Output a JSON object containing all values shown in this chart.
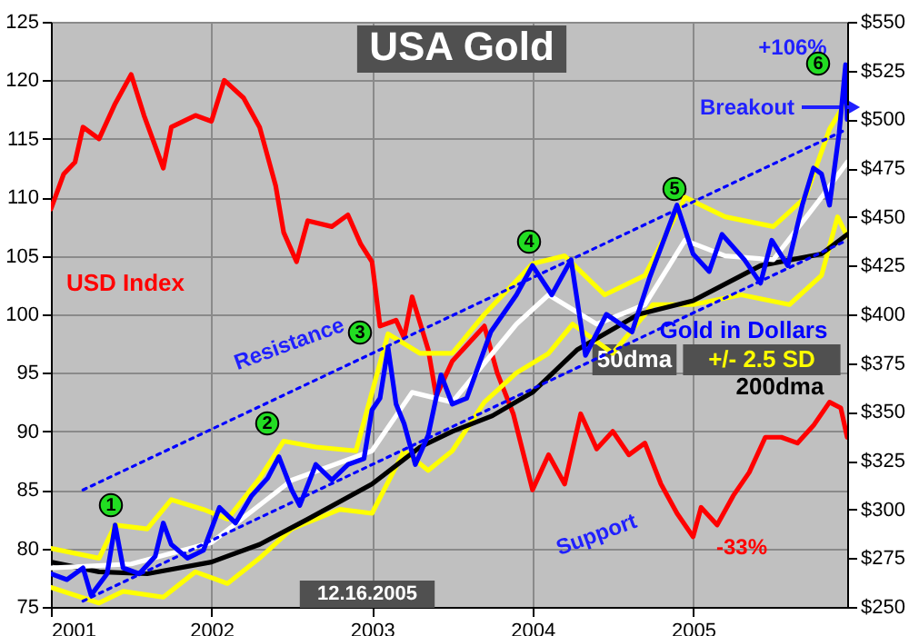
{
  "chart_data": {
    "type": "line",
    "title": "USA Gold",
    "xlim": [
      2001,
      2005.96
    ],
    "xticks": [
      2001,
      2002,
      2003,
      2004,
      2005
    ],
    "ylim": [
      75,
      125
    ],
    "yticks": [
      75,
      80,
      85,
      90,
      95,
      100,
      105,
      110,
      115,
      120,
      125
    ],
    "y2lim": [
      250,
      550
    ],
    "y2ticks": [
      {
        "value": 250,
        "label": "$250"
      },
      {
        "value": 275,
        "label": "$275"
      },
      {
        "value": 300,
        "label": "$300"
      },
      {
        "value": 325,
        "label": "$325"
      },
      {
        "value": 350,
        "label": "$350"
      },
      {
        "value": 375,
        "label": "$375"
      },
      {
        "value": 400,
        "label": "$400"
      },
      {
        "value": 425,
        "label": "$425"
      },
      {
        "value": 450,
        "label": "$450"
      },
      {
        "value": 475,
        "label": "$475"
      },
      {
        "value": 500,
        "label": "$500"
      },
      {
        "value": 525,
        "label": "$525"
      },
      {
        "value": 550,
        "label": "$550"
      }
    ],
    "grid": true,
    "series": [
      {
        "name": "USD Index",
        "color": "#ff0000",
        "x": [
          2001.0,
          2001.08,
          2001.15,
          2001.2,
          2001.3,
          2001.4,
          2001.5,
          2001.58,
          2001.7,
          2001.75,
          2001.9,
          2002.0,
          2002.08,
          2002.2,
          2002.3,
          2002.4,
          2002.45,
          2002.53,
          2002.6,
          2002.75,
          2002.85,
          2002.93,
          2003.0,
          2003.05,
          2003.15,
          2003.2,
          2003.25,
          2003.35,
          2003.4,
          2003.5,
          2003.7,
          2003.78,
          2003.88,
          2004.0,
          2004.1,
          2004.2,
          2004.3,
          2004.4,
          2004.5,
          2004.6,
          2004.7,
          2004.8,
          2004.9,
          2005.0,
          2005.05,
          2005.15,
          2005.25,
          2005.35,
          2005.45,
          2005.55,
          2005.65,
          2005.75,
          2005.85,
          2005.92,
          2005.96
        ],
        "values": [
          109,
          112,
          113,
          116,
          115,
          118,
          120.5,
          117,
          112.5,
          116,
          117,
          116.5,
          120,
          118.5,
          116,
          111,
          107,
          104.5,
          108,
          107.5,
          108.5,
          106,
          104.5,
          99,
          99.5,
          98,
          101.5,
          97,
          93,
          96,
          99,
          95,
          91.5,
          85,
          88,
          85.5,
          91.5,
          88.5,
          90,
          88,
          89,
          85.5,
          83,
          81,
          83.5,
          82,
          84.5,
          86.5,
          89.5,
          89.5,
          89,
          90.5,
          92.5,
          92,
          89.5
        ]
      },
      {
        "name": "+/- 2.5 SD",
        "color": "#ffff00",
        "axis": "y2",
        "x": [
          2001.0,
          2001.3,
          2001.4,
          2001.6,
          2001.75,
          2001.95,
          2002.1,
          2002.3,
          2002.45,
          2002.65,
          2002.9,
          2003.1,
          2003.3,
          2003.5,
          2003.7,
          2004.0,
          2004.2,
          2004.45,
          2004.7,
          2004.95,
          2005.2,
          2005.5,
          2005.7,
          2005.85,
          2005.96
        ],
        "values": [
          280,
          275,
          292,
          290,
          305,
          300,
          295,
          316,
          335,
          332,
          330,
          390,
          380,
          380,
          400,
          426,
          430,
          410,
          420,
          460,
          450,
          445,
          460,
          495,
          510
        ]
      },
      {
        "color": "#ffff00",
        "axis": "y2",
        "x": [
          2001.0,
          2001.3,
          2001.45,
          2001.7,
          2001.9,
          2002.1,
          2002.3,
          2002.5,
          2002.8,
          2003.0,
          2003.2,
          2003.35,
          2003.5,
          2003.7,
          2003.9,
          2004.1,
          2004.25,
          2004.5,
          2004.75,
          2005.0,
          2005.3,
          2005.6,
          2005.8,
          2005.9,
          2005.96
        ],
        "values": [
          260,
          252,
          258,
          255,
          268,
          262,
          275,
          290,
          300,
          298,
          330,
          320,
          330,
          355,
          370,
          380,
          395,
          380,
          405,
          405,
          410,
          405,
          420,
          450,
          440
        ]
      },
      {
        "name": "200dma",
        "color": "#000000",
        "axis": "y2",
        "x": [
          2001.0,
          2001.3,
          2001.6,
          2002.0,
          2002.3,
          2002.6,
          2003.0,
          2003.3,
          2003.5,
          2003.75,
          2004.0,
          2004.28,
          2004.66,
          2005.0,
          2005.42,
          2005.8,
          2005.96
        ],
        "values": [
          273,
          268,
          267,
          273,
          282,
          295,
          313,
          332,
          340,
          348,
          360,
          382,
          400,
          407,
          425,
          431,
          441
        ]
      },
      {
        "name": "50dma",
        "color": "#ffffff",
        "axis": "y2",
        "x": [
          2001.0,
          2001.5,
          2002.0,
          2002.5,
          2003.0,
          2003.25,
          2003.5,
          2003.9,
          2004.1,
          2004.4,
          2004.7,
          2004.95,
          2005.2,
          2005.5,
          2005.8,
          2005.96
        ],
        "values": [
          270,
          272,
          283,
          315,
          330,
          360,
          355,
          395,
          410,
          395,
          405,
          438,
          430,
          428,
          460,
          478
        ]
      },
      {
        "name": "Gold in Dollars",
        "color": "#0000ff",
        "axis": "y2",
        "x": [
          2001.0,
          2001.1,
          2001.2,
          2001.25,
          2001.35,
          2001.4,
          2001.45,
          2001.55,
          2001.65,
          2001.7,
          2001.75,
          2001.85,
          2001.95,
          2002.05,
          2002.15,
          2002.25,
          2002.35,
          2002.42,
          2002.5,
          2002.55,
          2002.65,
          2002.75,
          2002.85,
          2002.95,
          2003.0,
          2003.05,
          2003.1,
          2003.15,
          2003.2,
          2003.27,
          2003.35,
          2003.43,
          2003.5,
          2003.59,
          2003.74,
          2003.9,
          2004.0,
          2004.12,
          2004.24,
          2004.33,
          2004.46,
          2004.62,
          2004.73,
          2004.9,
          2005.0,
          2005.1,
          2005.18,
          2005.32,
          2005.42,
          2005.49,
          2005.59,
          2005.68,
          2005.75,
          2005.8,
          2005.85,
          2005.91,
          2005.95,
          2005.96
        ],
        "values": [
          267,
          264,
          270,
          256,
          267,
          292,
          270,
          267,
          276,
          293,
          282,
          275,
          279,
          301,
          293,
          307,
          316,
          327,
          310,
          302,
          323,
          315,
          323,
          326,
          351,
          357,
          383,
          354,
          344,
          323,
          338,
          369,
          354,
          357,
          391,
          410,
          425,
          410,
          428,
          379,
          400,
          391,
          419,
          456,
          431,
          422,
          441,
          428,
          416,
          438,
          425,
          456,
          475,
          472,
          456,
          493,
          528,
          500
        ]
      },
      {
        "type": "line",
        "color": "#0000ff",
        "axis": "y2",
        "line_style": "dotted",
        "x": [
          2001.2,
          2005.96
        ],
        "values": [
          310,
          495
        ]
      },
      {
        "type": "line",
        "color": "#0000ff",
        "axis": "y2",
        "line_style": "dotted",
        "x": [
          2001.2,
          2005.96
        ],
        "values": [
          253,
          438
        ]
      }
    ],
    "annotations": [
      "Resistance",
      "Support",
      "Breakout",
      "12.16.2005",
      "+106%",
      "-33%",
      "1",
      "2",
      "3",
      "4",
      "5",
      "6"
    ]
  }
}
